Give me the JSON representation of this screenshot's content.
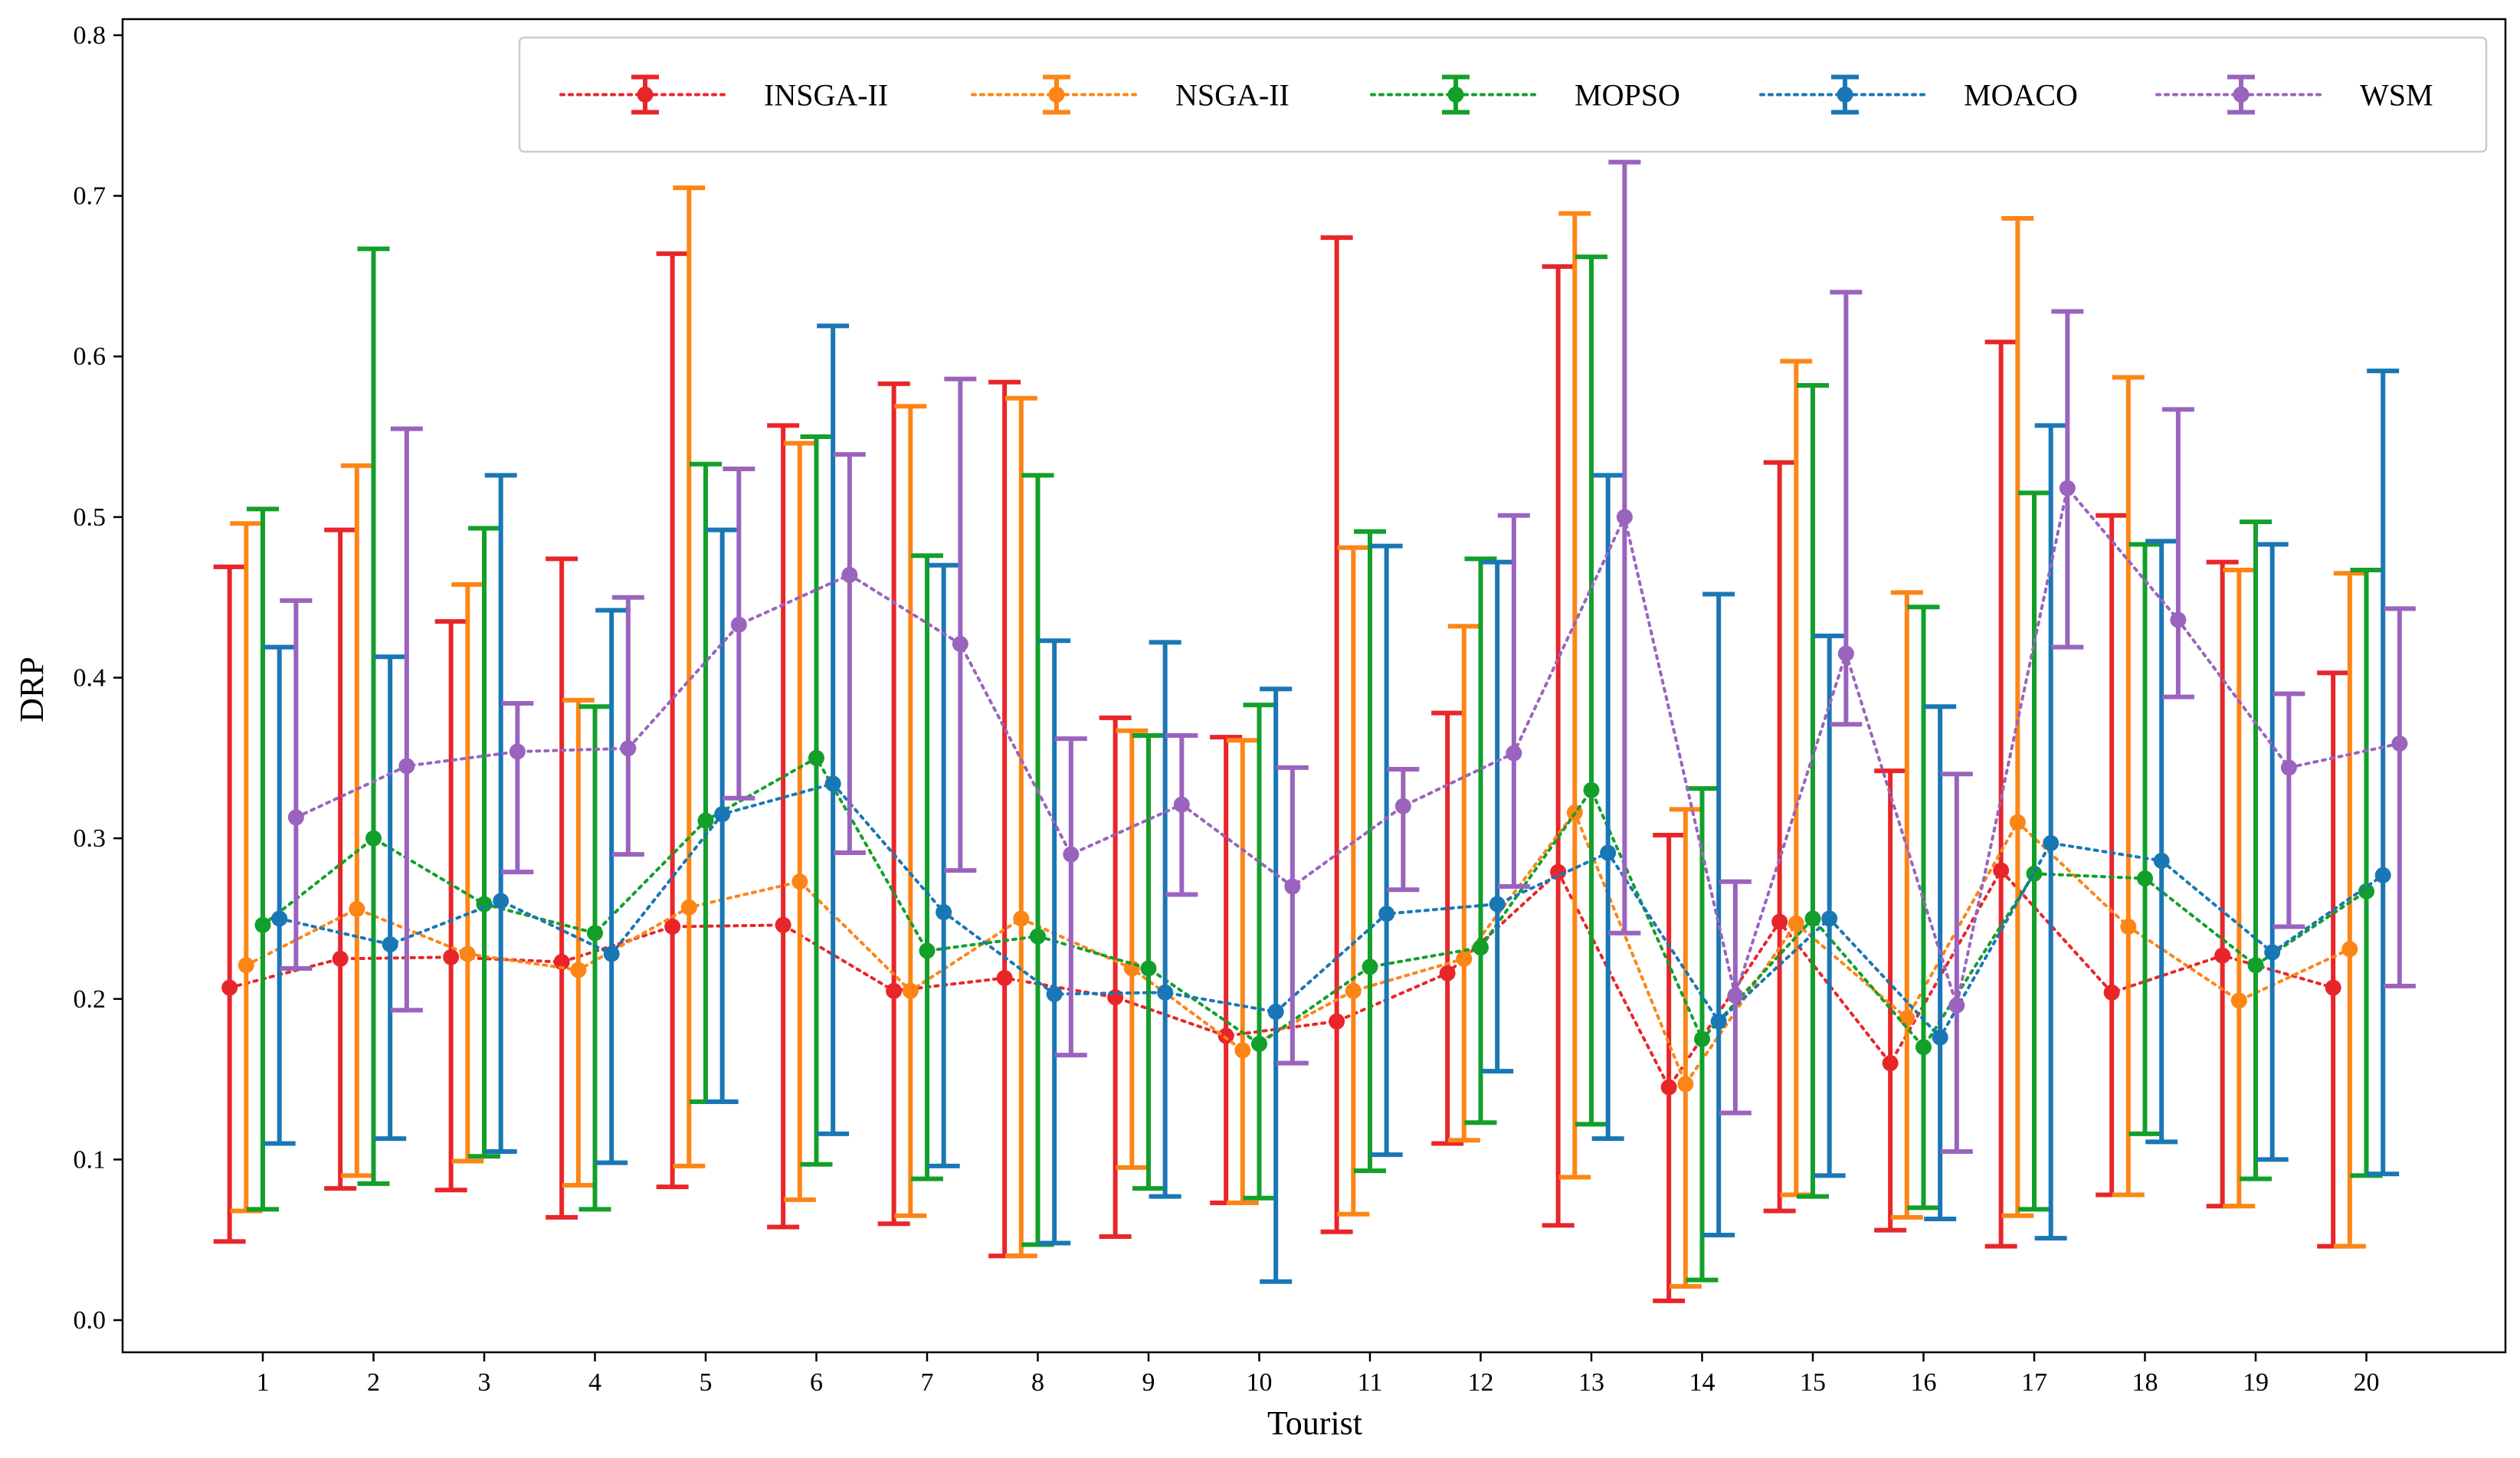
{
  "chart_data": {
    "type": "errorbar-line",
    "title": "",
    "xlabel": "Tourist",
    "ylabel": "DRP",
    "ylim": [
      -0.02,
      0.81
    ],
    "yticks": [
      "0.0",
      "0.1",
      "0.2",
      "0.3",
      "0.4",
      "0.5",
      "0.6",
      "0.7",
      "0.8"
    ],
    "categories": [
      "1",
      "2",
      "3",
      "4",
      "5",
      "6",
      "7",
      "8",
      "9",
      "10",
      "11",
      "12",
      "13",
      "14",
      "15",
      "16",
      "17",
      "18",
      "19",
      "20"
    ],
    "legend_position": "top-right",
    "series": [
      {
        "name": "INSGA-II",
        "color": "#e8262a",
        "offset": -0.3,
        "values": [
          0.207,
          0.225,
          0.226,
          0.223,
          0.245,
          0.246,
          0.205,
          0.213,
          0.201,
          0.177,
          0.186,
          0.216,
          0.279,
          0.145,
          0.248,
          0.16,
          0.28,
          0.204,
          0.227,
          0.207
        ],
        "upper": [
          0.469,
          0.492,
          0.435,
          0.474,
          0.664,
          0.557,
          0.583,
          0.584,
          0.375,
          0.363,
          0.674,
          0.378,
          0.656,
          0.302,
          0.534,
          0.342,
          0.609,
          0.501,
          0.472,
          0.403
        ],
        "lower": [
          0.049,
          0.082,
          0.081,
          0.064,
          0.083,
          0.058,
          0.06,
          0.04,
          0.052,
          0.073,
          0.055,
          0.11,
          0.059,
          0.012,
          0.068,
          0.056,
          0.046,
          0.078,
          0.071,
          0.046
        ]
      },
      {
        "name": "NSGA-II",
        "color": "#fd8516",
        "offset": -0.15,
        "values": [
          0.221,
          0.256,
          0.228,
          0.218,
          0.257,
          0.273,
          0.205,
          0.25,
          0.219,
          0.168,
          0.205,
          0.225,
          0.316,
          0.147,
          0.247,
          0.188,
          0.31,
          0.245,
          0.199,
          0.231
        ],
        "upper": [
          0.496,
          0.532,
          0.458,
          0.386,
          0.705,
          0.546,
          0.569,
          0.574,
          0.367,
          0.361,
          0.481,
          0.432,
          0.689,
          0.318,
          0.597,
          0.453,
          0.686,
          0.587,
          0.467,
          0.465
        ],
        "lower": [
          0.068,
          0.09,
          0.099,
          0.084,
          0.096,
          0.075,
          0.065,
          0.04,
          0.095,
          0.073,
          0.066,
          0.112,
          0.089,
          0.021,
          0.078,
          0.064,
          0.065,
          0.078,
          0.071,
          0.046
        ]
      },
      {
        "name": "MOPSO",
        "color": "#12a02a",
        "offset": 0.0,
        "values": [
          0.246,
          0.3,
          0.259,
          0.241,
          0.311,
          0.35,
          0.23,
          0.239,
          0.219,
          0.172,
          0.22,
          0.232,
          0.33,
          0.175,
          0.25,
          0.17,
          0.278,
          0.275,
          0.221,
          0.267
        ],
        "upper": [
          0.505,
          0.667,
          0.493,
          0.382,
          0.533,
          0.55,
          0.476,
          0.526,
          0.364,
          0.383,
          0.491,
          0.474,
          0.662,
          0.331,
          0.582,
          0.444,
          0.515,
          0.483,
          0.497,
          0.467
        ],
        "lower": [
          0.069,
          0.085,
          0.102,
          0.069,
          0.136,
          0.097,
          0.088,
          0.047,
          0.082,
          0.076,
          0.093,
          0.123,
          0.122,
          0.025,
          0.077,
          0.07,
          0.069,
          0.116,
          0.088,
          0.09
        ]
      },
      {
        "name": "MOACO",
        "color": "#1a77b5",
        "offset": 0.15,
        "values": [
          0.25,
          0.234,
          0.261,
          0.228,
          0.315,
          0.334,
          0.254,
          0.203,
          0.204,
          0.192,
          0.253,
          0.259,
          0.291,
          0.186,
          0.25,
          0.176,
          0.297,
          0.286,
          0.229,
          0.277
        ],
        "upper": [
          0.419,
          0.413,
          0.526,
          0.442,
          0.492,
          0.619,
          0.47,
          0.423,
          0.422,
          0.393,
          0.482,
          0.472,
          0.526,
          0.452,
          0.426,
          0.382,
          0.557,
          0.485,
          0.483,
          0.591
        ],
        "lower": [
          0.11,
          0.113,
          0.105,
          0.098,
          0.136,
          0.116,
          0.096,
          0.048,
          0.077,
          0.024,
          0.103,
          0.155,
          0.113,
          0.053,
          0.09,
          0.063,
          0.051,
          0.111,
          0.1,
          0.091
        ]
      },
      {
        "name": "WSM",
        "color": "#9a64be",
        "offset": 0.3,
        "values": [
          0.313,
          0.345,
          0.354,
          0.356,
          0.433,
          0.464,
          0.421,
          0.29,
          0.321,
          0.27,
          0.32,
          0.353,
          0.5,
          0.202,
          0.415,
          0.196,
          0.518,
          0.436,
          0.344,
          0.359
        ],
        "upper": [
          0.448,
          0.555,
          0.384,
          0.45,
          0.53,
          0.539,
          0.586,
          0.362,
          0.364,
          0.344,
          0.343,
          0.501,
          0.721,
          0.273,
          0.64,
          0.34,
          0.628,
          0.567,
          0.39,
          0.443
        ],
        "lower": [
          0.219,
          0.193,
          0.279,
          0.29,
          0.325,
          0.291,
          0.28,
          0.165,
          0.265,
          0.16,
          0.268,
          0.27,
          0.241,
          0.129,
          0.371,
          0.105,
          0.419,
          0.388,
          0.245,
          0.208
        ]
      }
    ]
  }
}
